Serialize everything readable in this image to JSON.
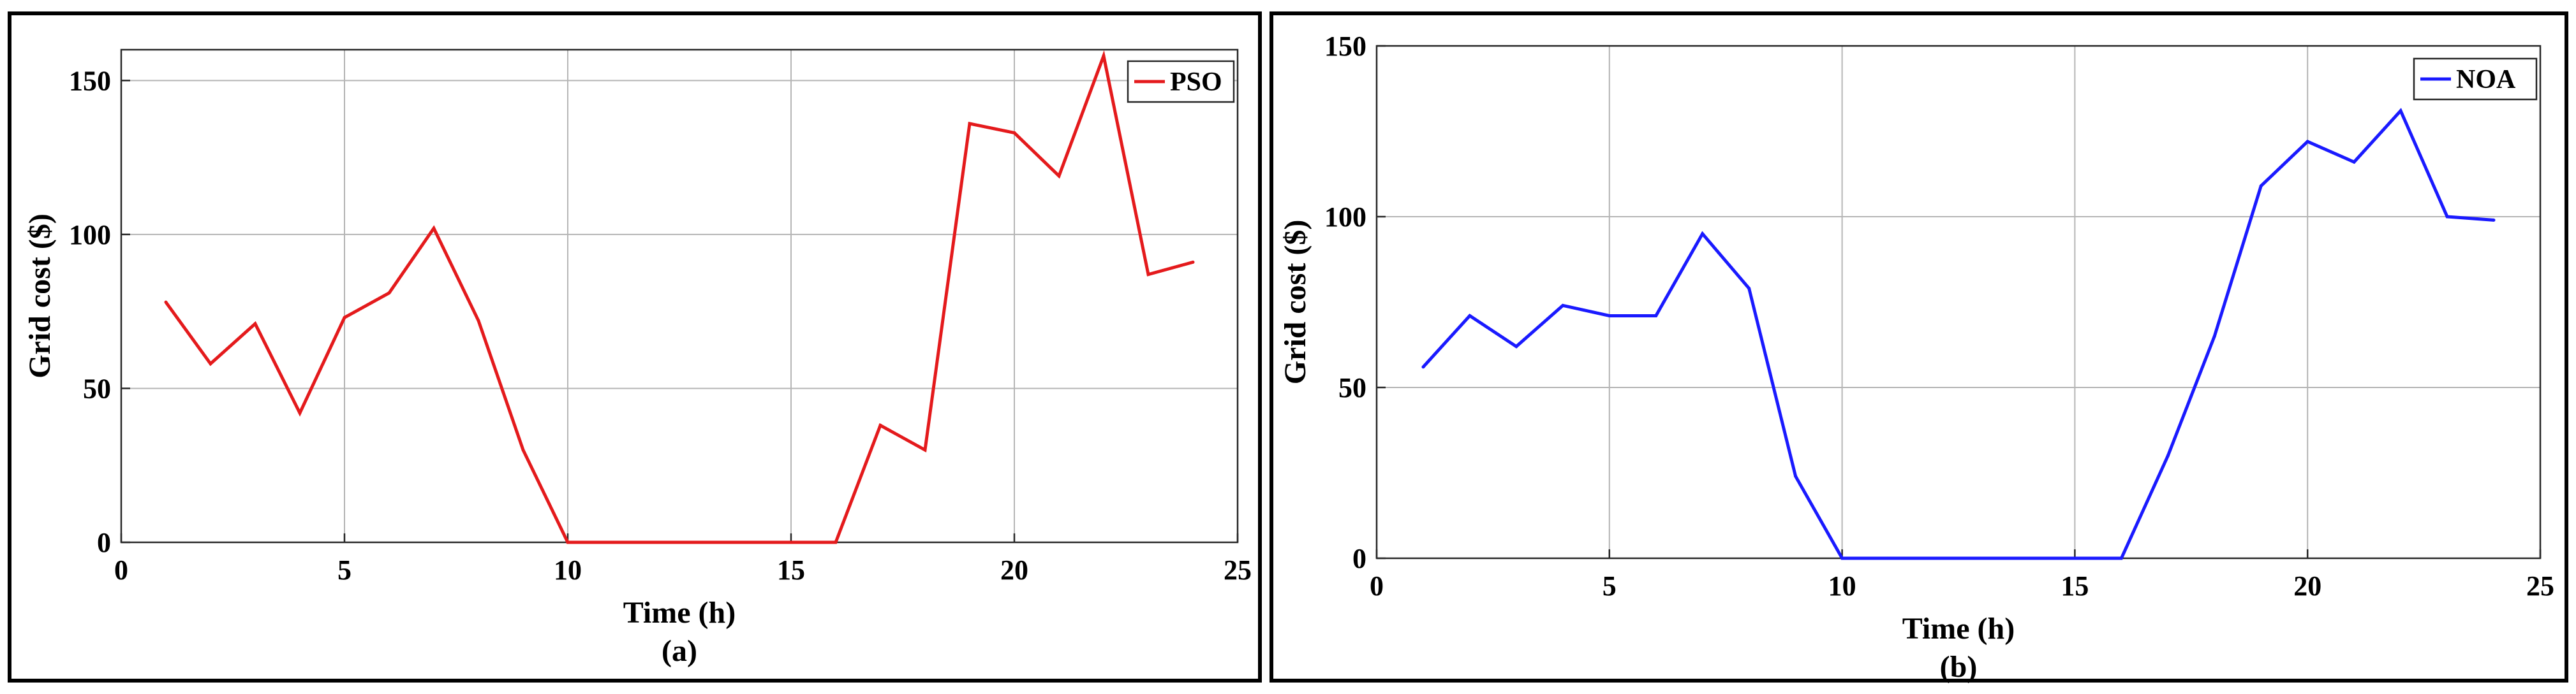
{
  "chart_data": [
    {
      "type": "line",
      "panel_label": "(a)",
      "xlabel": "Time (h)",
      "ylabel": "Grid cost ($)",
      "xlim": [
        0,
        25
      ],
      "ylim": [
        0,
        160
      ],
      "xticks": [
        0,
        5,
        10,
        15,
        20,
        25
      ],
      "yticks": [
        0,
        50,
        100,
        150
      ],
      "grid": true,
      "legend_position": "top-right",
      "series": [
        {
          "name": "PSO",
          "color": "#e41a1c",
          "x": [
            1,
            2,
            3,
            4,
            5,
            6,
            7,
            8,
            9,
            10,
            11,
            12,
            13,
            14,
            15,
            16,
            17,
            18,
            19,
            20,
            21,
            22,
            23,
            24
          ],
          "y": [
            78,
            58,
            71,
            42,
            73,
            81,
            102,
            72,
            30,
            0,
            0,
            0,
            0,
            0,
            0,
            0,
            38,
            30,
            136,
            133,
            119,
            158,
            87,
            91
          ]
        }
      ]
    },
    {
      "type": "line",
      "panel_label": "(b)",
      "xlabel": "Time (h)",
      "ylabel": "Grid cost ($)",
      "xlim": [
        0,
        25
      ],
      "ylim": [
        0,
        150
      ],
      "xticks": [
        0,
        5,
        10,
        15,
        20,
        25
      ],
      "yticks": [
        0,
        50,
        100,
        150
      ],
      "grid": true,
      "legend_position": "top-right",
      "series": [
        {
          "name": "NOA",
          "color": "#1a1aff",
          "x": [
            1,
            2,
            3,
            4,
            5,
            6,
            7,
            8,
            9,
            10,
            11,
            12,
            13,
            14,
            15,
            16,
            17,
            18,
            19,
            20,
            21,
            22,
            23,
            24
          ],
          "y": [
            56,
            71,
            62,
            74,
            71,
            71,
            95,
            79,
            24,
            0,
            0,
            0,
            0,
            0,
            0,
            0,
            30,
            65,
            109,
            122,
            116,
            131,
            100,
            99
          ]
        }
      ]
    }
  ]
}
